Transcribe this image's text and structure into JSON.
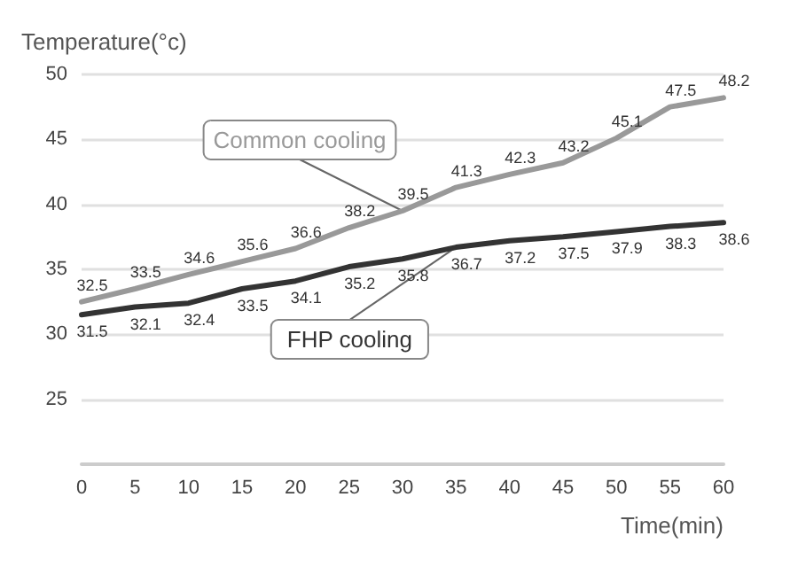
{
  "chart_data": {
    "type": "line",
    "xlabel": "Time(min)",
    "ylabel": "Temperature(°c)",
    "x": [
      0,
      5,
      10,
      15,
      20,
      25,
      30,
      35,
      40,
      45,
      50,
      55,
      60
    ],
    "series": [
      {
        "name": "Common cooling",
        "color": "#999999",
        "values": [
          32.5,
          33.5,
          34.6,
          35.6,
          36.6,
          38.2,
          39.5,
          41.3,
          42.3,
          43.2,
          45.1,
          47.5,
          48.2
        ]
      },
      {
        "name": "FHP cooling",
        "color": "#333333",
        "values": [
          31.5,
          32.1,
          32.4,
          33.5,
          34.1,
          35.2,
          35.8,
          36.7,
          37.2,
          37.5,
          37.9,
          38.3,
          38.6
        ]
      }
    ],
    "xlim": [
      0,
      60
    ],
    "xticks": [
      0,
      5,
      10,
      15,
      20,
      25,
      30,
      35,
      40,
      45,
      50,
      55,
      60
    ],
    "ylim": [
      20,
      50
    ],
    "yticks": [
      25,
      30,
      35,
      40,
      45,
      50
    ],
    "grid": "y",
    "legend": false,
    "marker": "none",
    "line_style": "solid",
    "data_labels": true
  }
}
